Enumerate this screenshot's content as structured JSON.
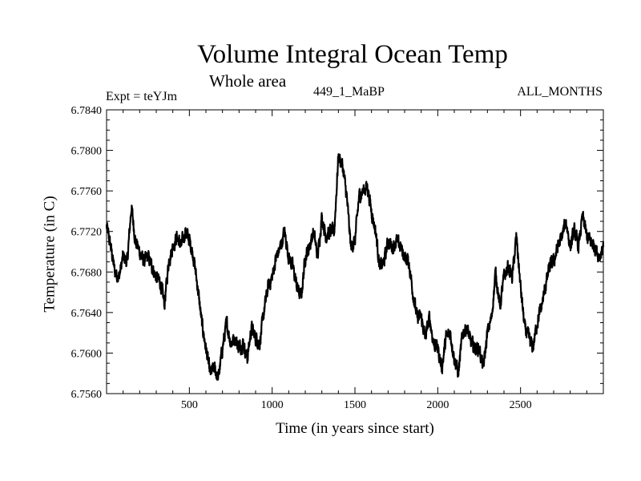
{
  "chart_data": {
    "type": "line",
    "title": "Volume Integral Ocean Temp",
    "subtitle": "Whole area",
    "experiment_label": "Expt = teYJm",
    "run_label": "449_1_MaBP",
    "period_label": "ALL_MONTHS",
    "xlabel": "Time (in years since start)",
    "ylabel": "Temperature (in C)",
    "xlim": [
      0,
      3000
    ],
    "ylim": [
      6.756,
      6.784
    ],
    "x_ticks": [
      500,
      1000,
      1500,
      2000,
      2500
    ],
    "x_tick_labels": [
      "500",
      "1000",
      "1500",
      "2000",
      "2500"
    ],
    "y_ticks": [
      6.756,
      6.76,
      6.764,
      6.768,
      6.772,
      6.776,
      6.78,
      6.784
    ],
    "y_tick_labels": [
      "6.7560",
      "6.7600",
      "6.7640",
      "6.7680",
      "6.7720",
      "6.7760",
      "6.7800",
      "6.7840"
    ],
    "grid": false,
    "line_color": "#000000",
    "series": [
      {
        "name": "Volume integral ocean temperature",
        "x": [
          0,
          25,
          50,
          75,
          100,
          125,
          150,
          175,
          200,
          225,
          250,
          275,
          300,
          325,
          350,
          375,
          400,
          425,
          450,
          475,
          500,
          525,
          550,
          575,
          600,
          625,
          650,
          675,
          700,
          725,
          750,
          775,
          800,
          825,
          850,
          875,
          900,
          925,
          950,
          975,
          1000,
          1025,
          1050,
          1075,
          1100,
          1125,
          1150,
          1175,
          1200,
          1225,
          1250,
          1275,
          1300,
          1325,
          1350,
          1375,
          1400,
          1425,
          1450,
          1475,
          1500,
          1525,
          1550,
          1575,
          1600,
          1625,
          1650,
          1675,
          1700,
          1725,
          1750,
          1775,
          1800,
          1825,
          1850,
          1875,
          1900,
          1925,
          1950,
          1975,
          2000,
          2025,
          2050,
          2075,
          2100,
          2125,
          2150,
          2175,
          2200,
          2225,
          2250,
          2275,
          2300,
          2325,
          2350,
          2375,
          2400,
          2425,
          2450,
          2475,
          2500,
          2525,
          2550,
          2575,
          2600,
          2625,
          2650,
          2675,
          2700,
          2725,
          2750,
          2775,
          2800,
          2825,
          2850,
          2875,
          2900,
          2925,
          2950,
          2975,
          3000
        ],
        "values": [
          6.7725,
          6.7705,
          6.768,
          6.7675,
          6.7695,
          6.769,
          6.7745,
          6.771,
          6.77,
          6.769,
          6.7695,
          6.7685,
          6.7675,
          6.767,
          6.7648,
          6.769,
          6.7705,
          6.7715,
          6.7705,
          6.772,
          6.7712,
          6.7695,
          6.7665,
          6.763,
          6.7605,
          6.758,
          6.7585,
          6.7575,
          6.7605,
          6.763,
          6.761,
          6.7615,
          6.7605,
          6.761,
          6.7595,
          6.7625,
          6.7615,
          6.761,
          6.764,
          6.7665,
          6.7675,
          6.7695,
          6.7705,
          6.772,
          6.7695,
          6.7685,
          6.7665,
          6.7655,
          6.7695,
          6.7705,
          6.772,
          6.7695,
          6.7735,
          6.7715,
          6.772,
          6.772,
          6.7795,
          6.7785,
          6.7755,
          6.7705,
          6.771,
          6.7755,
          6.776,
          6.7765,
          6.774,
          6.772,
          6.7685,
          6.769,
          6.771,
          6.7705,
          6.771,
          6.7705,
          6.7695,
          6.769,
          6.766,
          6.7635,
          6.7635,
          6.7615,
          6.7635,
          6.761,
          6.7605,
          6.7585,
          6.7615,
          6.762,
          6.7595,
          6.758,
          6.762,
          6.7625,
          6.761,
          6.7605,
          6.7605,
          6.7585,
          6.762,
          6.7635,
          6.768,
          6.7645,
          6.7675,
          6.7685,
          6.7675,
          6.7715,
          6.7665,
          6.7625,
          6.7615,
          6.7605,
          6.763,
          6.7645,
          6.7665,
          6.7685,
          6.769,
          6.7705,
          6.7715,
          6.773,
          6.7705,
          6.772,
          6.7705,
          6.7735,
          6.7715,
          6.771,
          6.7705,
          6.7695,
          6.7705
        ]
      }
    ]
  }
}
